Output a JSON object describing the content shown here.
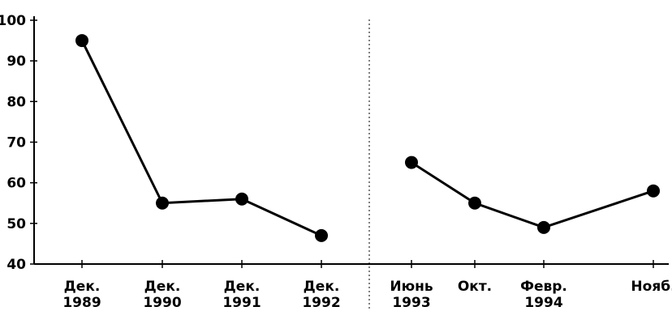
{
  "chart_data": {
    "type": "line",
    "ylim": [
      40,
      100
    ],
    "yticks": [
      "40",
      "50",
      "60",
      "70",
      "80",
      "90",
      "100"
    ],
    "grid": false,
    "legend": "none",
    "x_labels": [
      {
        "line1": "Дек.",
        "line2": "1989"
      },
      {
        "line1": "Дек.",
        "line2": "1990"
      },
      {
        "line1": "Дек.",
        "line2": "1991"
      },
      {
        "line1": "Дек.",
        "line2": "1992"
      },
      {
        "line1": "Июнь",
        "line2": "1993"
      },
      {
        "line1": "Окт.",
        "line2": ""
      },
      {
        "line1": "Февр.",
        "line2": "1994"
      },
      {
        "line1": "Нояб.",
        "line2": ""
      }
    ],
    "series": [
      {
        "segment": 1,
        "points": [
          {
            "x": "Дек. 1989",
            "y": 95
          },
          {
            "x": "Дек. 1990",
            "y": 55
          },
          {
            "x": "Дек. 1991",
            "y": 56
          },
          {
            "x": "Дек. 1992",
            "y": 47
          }
        ]
      },
      {
        "segment": 2,
        "points": [
          {
            "x": "Июнь 1993",
            "y": 65
          },
          {
            "x": "Окт.",
            "y": 55
          },
          {
            "x": "Февр. 1994",
            "y": 49
          },
          {
            "x": "Нояб.",
            "y": 58
          }
        ]
      }
    ]
  }
}
